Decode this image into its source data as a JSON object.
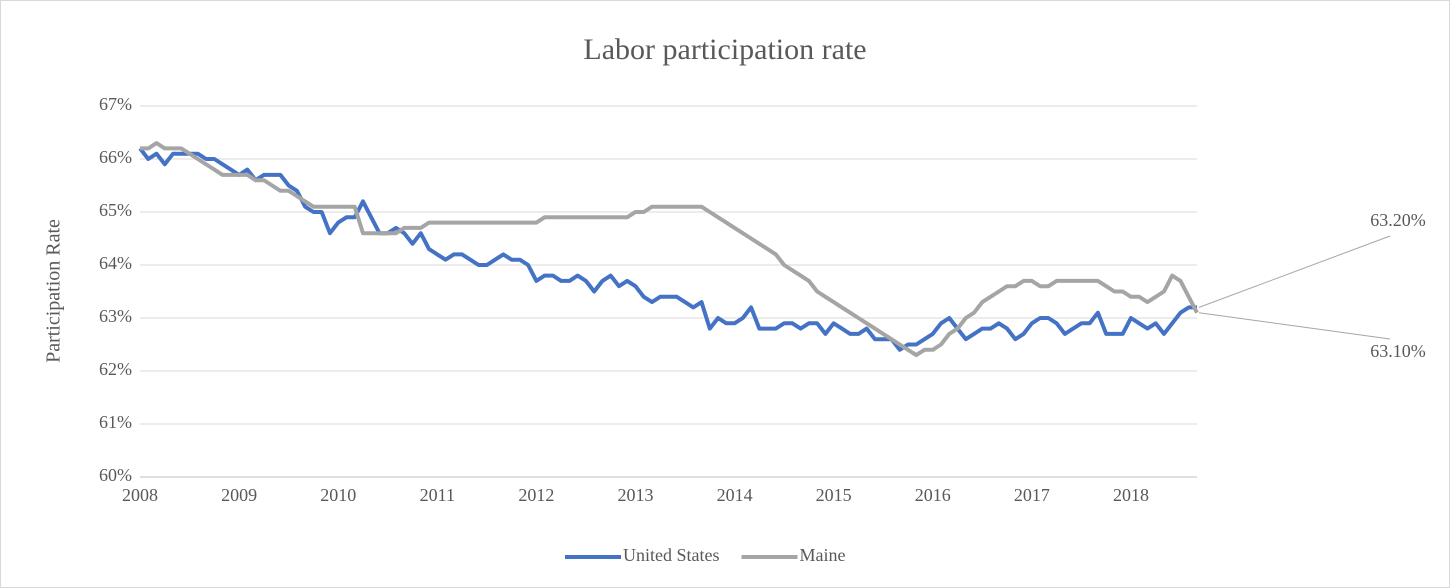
{
  "chart_data": {
    "type": "line",
    "title": "Labor participation rate",
    "y_label": "Participation Rate",
    "categories": [
      "2008",
      null,
      null,
      null,
      null,
      null,
      null,
      null,
      null,
      null,
      null,
      null,
      "2009",
      null,
      null,
      null,
      null,
      null,
      null,
      null,
      null,
      null,
      null,
      null,
      "2010",
      null,
      null,
      null,
      null,
      null,
      null,
      null,
      null,
      null,
      null,
      null,
      "2011",
      null,
      null,
      null,
      null,
      null,
      null,
      null,
      null,
      null,
      null,
      null,
      "2012",
      null,
      null,
      null,
      null,
      null,
      null,
      null,
      null,
      null,
      null,
      null,
      "2013",
      null,
      null,
      null,
      null,
      null,
      null,
      null,
      null,
      null,
      null,
      null,
      "2014",
      null,
      null,
      null,
      null,
      null,
      null,
      null,
      null,
      null,
      null,
      null,
      "2015",
      null,
      null,
      null,
      null,
      null,
      null,
      null,
      null,
      null,
      null,
      null,
      "2016",
      null,
      null,
      null,
      null,
      null,
      null,
      null,
      null,
      null,
      null,
      null,
      "2017",
      null,
      null,
      null,
      null,
      null,
      null,
      null,
      null,
      null,
      null,
      null,
      "2018",
      null,
      null,
      null,
      null,
      null,
      null,
      null,
      null
    ],
    "series": [
      {
        "name": "United States",
        "color": "#4472c4",
        "values": [
          66.2,
          66.0,
          66.1,
          65.9,
          66.1,
          66.1,
          66.1,
          66.1,
          66.0,
          66.0,
          65.9,
          65.8,
          65.7,
          65.8,
          65.6,
          65.7,
          65.7,
          65.7,
          65.5,
          65.4,
          65.1,
          65.0,
          65.0,
          64.6,
          64.8,
          64.9,
          64.9,
          65.2,
          64.9,
          64.6,
          64.6,
          64.7,
          64.6,
          64.4,
          64.6,
          64.3,
          64.2,
          64.1,
          64.2,
          64.2,
          64.1,
          64.0,
          64.0,
          64.1,
          64.2,
          64.1,
          64.1,
          64.0,
          63.7,
          63.8,
          63.8,
          63.7,
          63.7,
          63.8,
          63.7,
          63.5,
          63.7,
          63.8,
          63.6,
          63.7,
          63.6,
          63.4,
          63.3,
          63.4,
          63.4,
          63.4,
          63.3,
          63.2,
          63.3,
          62.8,
          63.0,
          62.9,
          62.9,
          63.0,
          63.2,
          62.8,
          62.8,
          62.8,
          62.9,
          62.9,
          62.8,
          62.9,
          62.9,
          62.7,
          62.9,
          62.8,
          62.7,
          62.7,
          62.8,
          62.6,
          62.6,
          62.6,
          62.4,
          62.5,
          62.5,
          62.6,
          62.7,
          62.9,
          63.0,
          62.8,
          62.6,
          62.7,
          62.8,
          62.8,
          62.9,
          62.8,
          62.6,
          62.7,
          62.9,
          63.0,
          63.0,
          62.9,
          62.7,
          62.8,
          62.9,
          62.9,
          63.1,
          62.7,
          62.7,
          62.7,
          63.0,
          62.9,
          62.8,
          62.9,
          62.7,
          62.9,
          63.1,
          63.2,
          63.2
        ],
        "value_labels": [
          null,
          null,
          null,
          null,
          null,
          null,
          null,
          null,
          null,
          null,
          null,
          null,
          null,
          null,
          null,
          null,
          null,
          null,
          null,
          null,
          null,
          null,
          null,
          null,
          null,
          null,
          null,
          null,
          null,
          null,
          null,
          null,
          null,
          null,
          null,
          null,
          null,
          null,
          null,
          null,
          null,
          null,
          null,
          null,
          null,
          null,
          null,
          null,
          null,
          null,
          null,
          null,
          null,
          null,
          null,
          null,
          null,
          null,
          null,
          null,
          null,
          null,
          null,
          null,
          null,
          null,
          null,
          null,
          null,
          null,
          null,
          null,
          null,
          null,
          null,
          null,
          null,
          null,
          null,
          null,
          null,
          null,
          null,
          null,
          null,
          null,
          null,
          null,
          null,
          null,
          null,
          null,
          null,
          null,
          null,
          null,
          null,
          null,
          null,
          null,
          null,
          null,
          null,
          null,
          null,
          null,
          null,
          null,
          null,
          null,
          null,
          null,
          null,
          null,
          null,
          null,
          null,
          null,
          null,
          null,
          null,
          null,
          null,
          null,
          null,
          null,
          null,
          null,
          "63.20%"
        ]
      },
      {
        "name": "Maine",
        "color": "#a5a5a5",
        "values": [
          66.2,
          66.2,
          66.3,
          66.2,
          66.2,
          66.2,
          66.1,
          66.0,
          65.9,
          65.8,
          65.7,
          65.7,
          65.7,
          65.7,
          65.6,
          65.6,
          65.5,
          65.4,
          65.4,
          65.3,
          65.2,
          65.1,
          65.1,
          65.1,
          65.1,
          65.1,
          65.1,
          64.6,
          64.6,
          64.6,
          64.6,
          64.6,
          64.7,
          64.7,
          64.7,
          64.8,
          64.8,
          64.8,
          64.8,
          64.8,
          64.8,
          64.8,
          64.8,
          64.8,
          64.8,
          64.8,
          64.8,
          64.8,
          64.8,
          64.9,
          64.9,
          64.9,
          64.9,
          64.9,
          64.9,
          64.9,
          64.9,
          64.9,
          64.9,
          64.9,
          65.0,
          65.0,
          65.1,
          65.1,
          65.1,
          65.1,
          65.1,
          65.1,
          65.1,
          65.0,
          64.9,
          64.8,
          64.7,
          64.6,
          64.5,
          64.4,
          64.3,
          64.2,
          64.0,
          63.9,
          63.8,
          63.7,
          63.5,
          63.4,
          63.3,
          63.2,
          63.1,
          63.0,
          62.9,
          62.8,
          62.7,
          62.6,
          62.5,
          62.4,
          62.3,
          62.4,
          62.4,
          62.5,
          62.7,
          62.8,
          63.0,
          63.1,
          63.3,
          63.4,
          63.5,
          63.6,
          63.6,
          63.7,
          63.7,
          63.6,
          63.6,
          63.7,
          63.7,
          63.7,
          63.7,
          63.7,
          63.7,
          63.6,
          63.5,
          63.5,
          63.4,
          63.4,
          63.3,
          63.4,
          63.5,
          63.8,
          63.7,
          63.4,
          63.1
        ],
        "value_labels": [
          null,
          null,
          null,
          null,
          null,
          null,
          null,
          null,
          null,
          null,
          null,
          null,
          null,
          null,
          null,
          null,
          null,
          null,
          null,
          null,
          null,
          null,
          null,
          null,
          null,
          null,
          null,
          null,
          null,
          null,
          null,
          null,
          null,
          null,
          null,
          null,
          null,
          null,
          null,
          null,
          null,
          null,
          null,
          null,
          null,
          null,
          null,
          null,
          null,
          null,
          null,
          null,
          null,
          null,
          null,
          null,
          null,
          null,
          null,
          null,
          null,
          null,
          null,
          null,
          null,
          null,
          null,
          null,
          null,
          null,
          null,
          null,
          null,
          null,
          null,
          null,
          null,
          null,
          null,
          null,
          null,
          null,
          null,
          null,
          null,
          null,
          null,
          null,
          null,
          null,
          null,
          null,
          null,
          null,
          null,
          null,
          null,
          null,
          null,
          null,
          null,
          null,
          null,
          null,
          null,
          null,
          null,
          null,
          null,
          null,
          null,
          null,
          null,
          null,
          null,
          null,
          null,
          null,
          null,
          null,
          null,
          null,
          null,
          null,
          null,
          null,
          null,
          null,
          "63.10%"
        ]
      }
    ],
    "ylim": [
      60,
      67
    ],
    "yticks": [
      {
        "value": 60,
        "label": "60%"
      },
      {
        "value": 61,
        "label": "61%"
      },
      {
        "value": 62,
        "label": "62%"
      },
      {
        "value": 63,
        "label": "63%"
      },
      {
        "value": 64,
        "label": "64%"
      },
      {
        "value": 65,
        "label": "65%"
      },
      {
        "value": 66,
        "label": "66%"
      },
      {
        "value": 67,
        "label": "67%"
      }
    ],
    "grid": true,
    "legend": "bottom"
  }
}
